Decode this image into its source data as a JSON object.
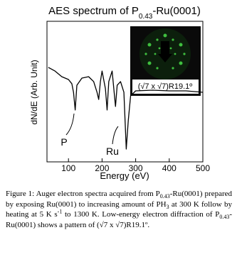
{
  "chart_data": {
    "type": "line",
    "title_parts": [
      "AES spectrum of P",
      "0.43",
      "-Ru(0001)"
    ],
    "x_label": "Energy (eV)",
    "y_label": "dN/dE (Arb. Unit)",
    "x": [
      40,
      60,
      80,
      100,
      110,
      115,
      120,
      125,
      140,
      160,
      175,
      185,
      190,
      195,
      200,
      210,
      215,
      220,
      230,
      240,
      245,
      255,
      265,
      272,
      278,
      285,
      300,
      350,
      400,
      450,
      500
    ],
    "values": [
      67.2,
      64.6,
      60.6,
      58.6,
      55.6,
      49.5,
      36.9,
      54.5,
      59.6,
      60.6,
      57.1,
      49.5,
      44.4,
      57.1,
      64.6,
      52,
      36.9,
      57.1,
      64.6,
      39.4,
      54.5,
      57.1,
      49.5,
      9.1,
      29.3,
      47,
      50.5,
      51,
      50.5,
      50.5,
      49.5
    ],
    "color": "#000000",
    "xlim": [
      36,
      500
    ],
    "xticks": [
      100,
      200,
      300,
      400,
      500
    ],
    "ylim": [
      0,
      100
    ],
    "annotations": [
      "P",
      "Ru"
    ],
    "inset_label": "(√7 x √7)R19.1º"
  },
  "caption": {
    "parts": [
      {
        "text": "Figure 1: Auger electron spectra acquired from P",
        "style": "normal"
      },
      {
        "text": "0.43",
        "style": "sub"
      },
      {
        "text": "-Ru(0001) prepared by exposing Ru(0001) to increasing amount of PH",
        "style": "normal"
      },
      {
        "text": "3",
        "style": "sub"
      },
      {
        "text": " at 300 K follow by heating at 5 K s",
        "style": "normal"
      },
      {
        "text": "-1",
        "style": "sup"
      },
      {
        "text": " to 1300 K. Low-energy electron diffraction of P",
        "style": "normal"
      },
      {
        "text": "0.43",
        "style": "sub"
      },
      {
        "text": "-Ru(0001) shows a pattern of (√7 x √7)R19.1º.",
        "style": "normal"
      }
    ]
  }
}
